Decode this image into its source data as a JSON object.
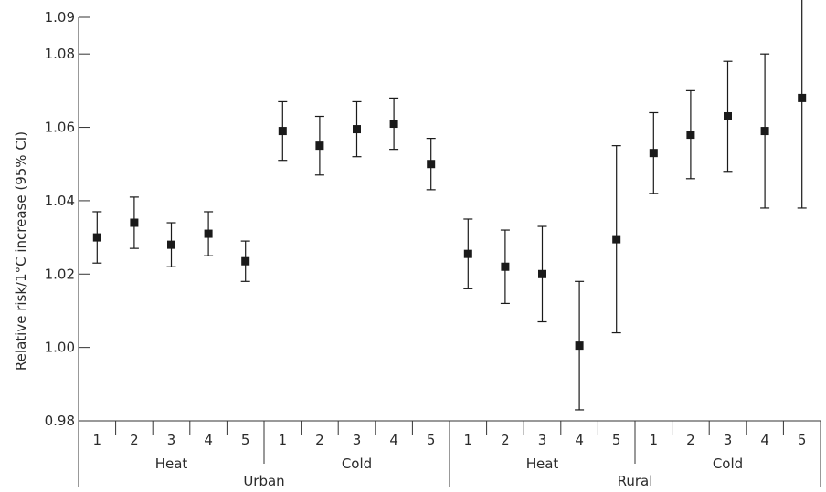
{
  "chart_data": {
    "type": "scatter",
    "ylabel": "Relative risk/1°C increase (95% CI)",
    "ylim": [
      0.98,
      1.09
    ],
    "yticks": [
      "0.98",
      "1.00",
      "1.02",
      "1.04",
      "1.06",
      "1.08",
      "1.09"
    ],
    "categories": [
      "1",
      "2",
      "3",
      "4",
      "5",
      "1",
      "2",
      "3",
      "4",
      "5",
      "1",
      "2",
      "3",
      "4",
      "5",
      "1",
      "2",
      "3",
      "4",
      "5"
    ],
    "season_groups": [
      "Heat",
      "Cold",
      "Heat",
      "Cold"
    ],
    "area_groups": [
      "Urban",
      "Rural"
    ],
    "points": [
      {
        "value": 1.03,
        "lower": 1.023,
        "upper": 1.037
      },
      {
        "value": 1.034,
        "lower": 1.027,
        "upper": 1.041
      },
      {
        "value": 1.028,
        "lower": 1.022,
        "upper": 1.034
      },
      {
        "value": 1.031,
        "lower": 1.025,
        "upper": 1.037
      },
      {
        "value": 1.0235,
        "lower": 1.018,
        "upper": 1.029
      },
      {
        "value": 1.059,
        "lower": 1.051,
        "upper": 1.067
      },
      {
        "value": 1.055,
        "lower": 1.047,
        "upper": 1.063
      },
      {
        "value": 1.0595,
        "lower": 1.052,
        "upper": 1.067
      },
      {
        "value": 1.061,
        "lower": 1.054,
        "upper": 1.068
      },
      {
        "value": 1.05,
        "lower": 1.043,
        "upper": 1.057
      },
      {
        "value": 1.0255,
        "lower": 1.016,
        "upper": 1.035
      },
      {
        "value": 1.022,
        "lower": 1.012,
        "upper": 1.032
      },
      {
        "value": 1.02,
        "lower": 1.007,
        "upper": 1.033
      },
      {
        "value": 1.0005,
        "lower": 0.983,
        "upper": 1.018
      },
      {
        "value": 1.0295,
        "lower": 1.004,
        "upper": 1.055
      },
      {
        "value": 1.053,
        "lower": 1.042,
        "upper": 1.064
      },
      {
        "value": 1.058,
        "lower": 1.046,
        "upper": 1.07
      },
      {
        "value": 1.063,
        "lower": 1.048,
        "upper": 1.078
      },
      {
        "value": 1.059,
        "lower": 1.038,
        "upper": 1.08
      },
      {
        "value": 1.068,
        "lower": 1.038,
        "upper": 1.098
      }
    ],
    "grid": false,
    "legend": "none",
    "colors": {
      "marker": "#1a1a1a",
      "axis": "#333333"
    }
  }
}
